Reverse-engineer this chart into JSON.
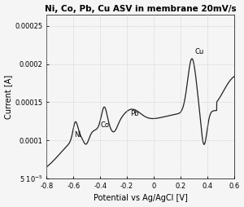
{
  "title": "Ni, Co, Pb, Cu ASV in membrane 20mV/s",
  "xlabel": "Potential vs Ag/AgCl [V]",
  "ylabel": "Current [A]",
  "xlim": [
    -0.8,
    0.6
  ],
  "ylim": [
    5e-05,
    0.000265
  ],
  "yticks": [
    5e-05,
    0.0001,
    0.00015,
    0.0002,
    0.00025
  ],
  "xticks": [
    -0.8,
    -0.6,
    -0.4,
    -0.2,
    0.0,
    0.2,
    0.4,
    0.6
  ],
  "line_color": "#222222",
  "line_width": 0.9,
  "grid_color": "#bbbbbb",
  "background_color": "#f5f5f5",
  "title_fontsize": 7.5,
  "axis_fontsize": 7,
  "tick_fontsize": 6,
  "annotation_fontsize": 6
}
